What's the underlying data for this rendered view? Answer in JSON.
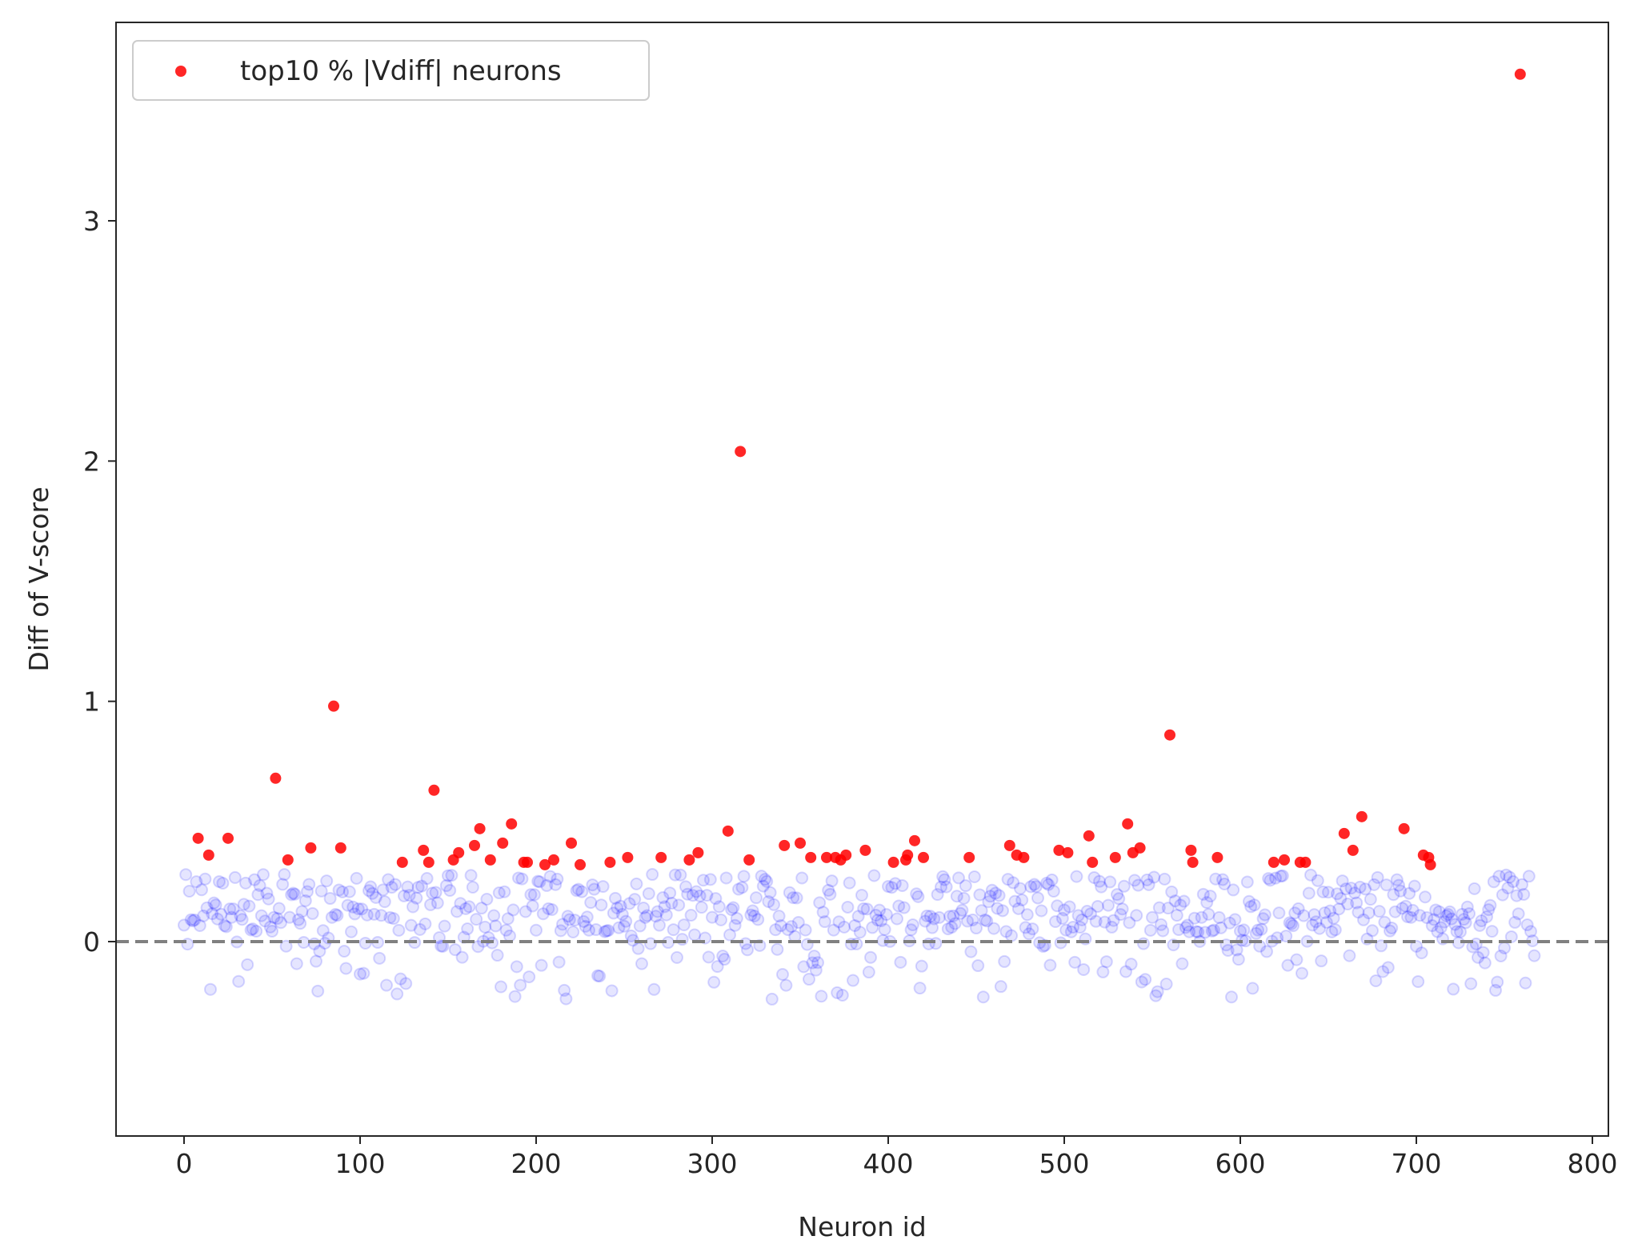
{
  "chart_data": {
    "type": "scatter",
    "xlabel": "Neuron id",
    "ylabel": "Diff of V-score",
    "xlim": [
      -40,
      805
    ],
    "ylim": [
      -0.8,
      3.8
    ],
    "xticks": [
      0,
      100,
      200,
      300,
      400,
      500,
      600,
      700,
      800
    ],
    "xtick_labels": [
      "0",
      "100",
      "200",
      "300",
      "400",
      "500",
      "600",
      "700",
      "800"
    ],
    "yticks": [
      0,
      1,
      2,
      3
    ],
    "ytick_labels": [
      "0",
      "1",
      "2",
      "3"
    ],
    "grid": false,
    "legend_position": "top-left",
    "reference_line": {
      "y": 0,
      "style": "dashed",
      "color": "#808080"
    },
    "series": [
      {
        "name": "top10 % |Vdiff| neurons",
        "color": "#ff0000",
        "x": [
          8,
          14,
          25,
          52,
          59,
          72,
          85,
          89,
          124,
          136,
          139,
          142,
          153,
          156,
          165,
          168,
          174,
          181,
          186,
          193,
          195,
          205,
          210,
          220,
          225,
          242,
          252,
          271,
          287,
          292,
          309,
          316,
          321,
          341,
          350,
          356,
          365,
          370,
          373,
          376,
          387,
          403,
          410,
          411,
          415,
          420,
          446,
          469,
          473,
          477,
          497,
          502,
          514,
          516,
          529,
          536,
          539,
          543,
          560,
          572,
          573,
          587,
          619,
          625,
          634,
          637,
          659,
          664,
          669,
          693,
          704,
          707,
          708,
          759
        ],
        "y": [
          0.43,
          0.36,
          0.43,
          0.68,
          0.34,
          0.39,
          0.98,
          0.39,
          0.33,
          0.38,
          0.33,
          0.63,
          0.34,
          0.37,
          0.4,
          0.47,
          0.34,
          0.41,
          0.49,
          0.33,
          0.33,
          0.32,
          0.34,
          0.41,
          0.32,
          0.33,
          0.35,
          0.35,
          0.34,
          0.37,
          0.46,
          2.04,
          0.34,
          0.4,
          0.41,
          0.35,
          0.35,
          0.35,
          0.34,
          0.36,
          0.38,
          0.33,
          0.34,
          0.36,
          0.42,
          0.35,
          0.35,
          0.4,
          0.36,
          0.35,
          0.38,
          0.37,
          0.44,
          0.33,
          0.35,
          0.49,
          0.37,
          0.39,
          0.86,
          0.38,
          0.33,
          0.35,
          0.33,
          0.34,
          0.33,
          0.33,
          0.45,
          0.38,
          0.52,
          0.47,
          0.36,
          0.35,
          0.32,
          3.61
        ]
      }
    ],
    "background_points": {
      "description_free": true,
      "color": "#0000ff",
      "count": 694,
      "x_range": [
        0,
        767
      ],
      "y_range": [
        -0.24,
        0.32
      ]
    }
  }
}
